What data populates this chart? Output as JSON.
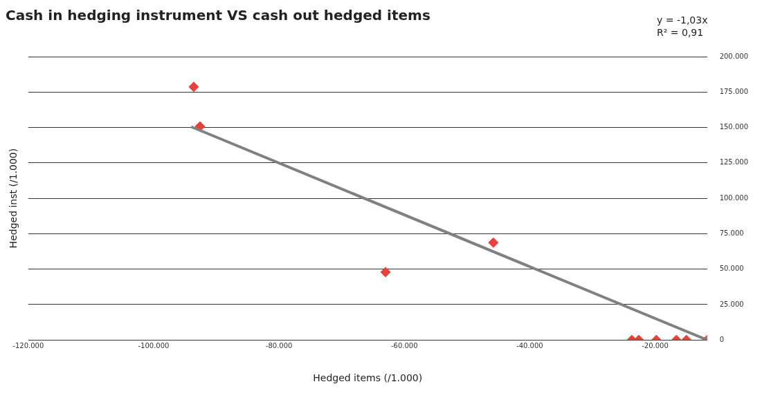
{
  "chart_data": {
    "type": "scatter",
    "title": "Cash in hedging instrument VS cash out hedged items",
    "xlabel": "Hedged items (/1.000)",
    "ylabel": "Hedged inst (/1.000)",
    "annotations": [
      "y = -1,03x",
      "R² = 0,91"
    ],
    "series": [
      {
        "type": "scatter",
        "color": "#e8403a",
        "marker": "diamond",
        "x": [
          -93600,
          -92600,
          -63000,
          -45800,
          -23700,
          -22600,
          -19800,
          -16600,
          -15000,
          -11700
        ],
        "values": [
          178700,
          150700,
          47900,
          68700,
          0,
          0,
          0,
          0,
          0,
          0
        ]
      },
      {
        "type": "line",
        "color": "#808080",
        "marker": "none",
        "line_style": "solid",
        "x": [
          -94000,
          -11700
        ],
        "values": [
          150500,
          0
        ]
      }
    ],
    "xlim": [
      -120000,
      -11700
    ],
    "xticks": [
      {
        "value": -120000,
        "label": "-120.000"
      },
      {
        "value": -100000,
        "label": "-100.000"
      },
      {
        "value": -80000,
        "label": "-80.000"
      },
      {
        "value": -60000,
        "label": "-60.000"
      },
      {
        "value": -40000,
        "label": "-40.000"
      },
      {
        "value": -20000,
        "label": "-20.000"
      }
    ],
    "ylim": [
      0,
      200000
    ],
    "yticks": [
      0,
      {
        "value": 25000,
        "label": "25.000"
      },
      {
        "value": 50000,
        "label": "50.000"
      },
      {
        "value": 75000,
        "label": "75.000"
      },
      {
        "value": 100000,
        "label": "100.000"
      },
      {
        "value": 125000,
        "label": "125.000"
      },
      {
        "value": 150000,
        "label": "150.000"
      },
      {
        "value": 175000,
        "label": "175.000"
      },
      {
        "value": 200000,
        "label": "200.000"
      }
    ],
    "grid": "y",
    "legend": false
  }
}
